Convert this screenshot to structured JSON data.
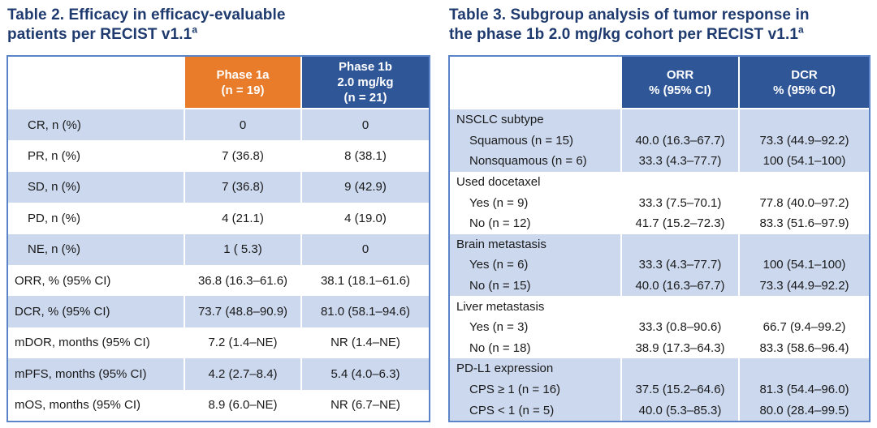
{
  "colors": {
    "title_navy": "#1e3a6e",
    "header_orange": "#e87c2a",
    "header_blue": "#2f5697",
    "row_light_blue": "#cbd8ee",
    "table_border_blue": "#5b83c8",
    "body_text": "#1a1a1a"
  },
  "table2": {
    "title": "Table 2. Efficacy in efficacy-evaluable\npatients per RECIST v1.1",
    "title_superscript": "a",
    "col_headers": [
      "Phase 1a\n(n = 19)",
      "Phase 1b\n2.0 mg/kg\n(n = 21)"
    ],
    "rows": [
      {
        "label": "CR, n (%)",
        "phase1a": "0",
        "phase1b": "0"
      },
      {
        "label": "PR, n (%)",
        "phase1a": "7 (36.8)",
        "phase1b": "8 (38.1)"
      },
      {
        "label": "SD, n (%)",
        "phase1a": "7 (36.8)",
        "phase1b": "9 (42.9)"
      },
      {
        "label": "PD, n (%)",
        "phase1a": "4 (21.1)",
        "phase1b": "4 (19.0)"
      },
      {
        "label": "NE, n (%)",
        "phase1a": "1 ( 5.3)",
        "phase1b": "0"
      },
      {
        "label": "ORR, % (95% CI)",
        "phase1a": "36.8 (16.3–61.6)",
        "phase1b": "38.1 (18.1–61.6)"
      },
      {
        "label": "DCR, % (95% CI)",
        "phase1a": "73.7 (48.8–90.9)",
        "phase1b": "81.0 (58.1–94.6)"
      },
      {
        "label": "mDOR, months (95% CI)",
        "phase1a": "7.2 (1.4–NE)",
        "phase1b": "NR (1.4–NE)"
      },
      {
        "label": "mPFS, months (95% CI)",
        "phase1a": "4.2 (2.7–8.4)",
        "phase1b": "5.4 (4.0–6.3)"
      },
      {
        "label": "mOS, months (95% CI)",
        "phase1a": "8.9 (6.0–NE)",
        "phase1b": "NR (6.7–NE)"
      }
    ]
  },
  "table3": {
    "title": "Table 3. Subgroup analysis of tumor response in\nthe phase 1b 2.0 mg/kg cohort per RECIST v1.1",
    "title_superscript": "a",
    "col_headers": [
      "ORR\n% (95% CI)",
      "DCR\n% (95% CI)"
    ],
    "rows": [
      {
        "label": "NSCLC subtype",
        "orr": "",
        "dcr": ""
      },
      {
        "label": "Squamous (n = 15)",
        "orr": "40.0 (16.3–67.7)",
        "dcr": "73.3 (44.9–92.2)"
      },
      {
        "label": "Nonsquamous (n = 6)",
        "orr": "33.3 (4.3–77.7)",
        "dcr": "100 (54.1–100)"
      },
      {
        "label": "Used docetaxel",
        "orr": "",
        "dcr": ""
      },
      {
        "label": "Yes (n = 9)",
        "orr": "33.3 (7.5–70.1)",
        "dcr": "77.8 (40.0–97.2)"
      },
      {
        "label": "No (n = 12)",
        "orr": "41.7 (15.2–72.3)",
        "dcr": "83.3 (51.6–97.9)"
      },
      {
        "label": "Brain metastasis",
        "orr": "",
        "dcr": ""
      },
      {
        "label": "Yes (n = 6)",
        "orr": "33.3 (4.3–77.7)",
        "dcr": "100 (54.1–100)"
      },
      {
        "label": "No (n = 15)",
        "orr": "40.0 (16.3–67.7)",
        "dcr": "73.3 (44.9–92.2)"
      },
      {
        "label": "Liver metastasis",
        "orr": "",
        "dcr": ""
      },
      {
        "label": "Yes (n = 3)",
        "orr": "33.3 (0.8–90.6)",
        "dcr": "66.7 (9.4–99.2)"
      },
      {
        "label": "No (n = 18)",
        "orr": "38.9 (17.3–64.3)",
        "dcr": "83.3 (58.6–96.4)"
      },
      {
        "label": "PD-L1 expression",
        "orr": "",
        "dcr": ""
      },
      {
        "label": "CPS ≥ 1 (n = 16)",
        "orr": "37.5 (15.2–64.6)",
        "dcr": "81.3 (54.4–96.0)"
      },
      {
        "label": "CPS < 1 (n = 5)",
        "orr": "40.0 (5.3–85.3)",
        "dcr": "80.0 (28.4–99.5)"
      }
    ]
  }
}
